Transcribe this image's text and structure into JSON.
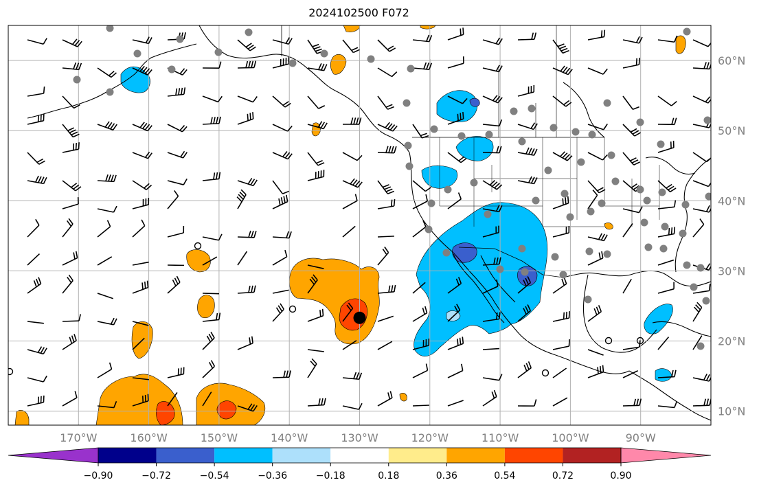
{
  "title": "2024102500 F072",
  "map": {
    "projection": "plate-carree",
    "extent": {
      "lon_min": -180,
      "lon_max": -80,
      "lat_min": 8,
      "lat_max": 65
    },
    "gridlines": true,
    "lon_ticks": [
      {
        "lon": -170,
        "label": "170°W"
      },
      {
        "lon": -160,
        "label": "160°W"
      },
      {
        "lon": -150,
        "label": "150°W"
      },
      {
        "lon": -140,
        "label": "140°W"
      },
      {
        "lon": -130,
        "label": "130°W"
      },
      {
        "lon": -120,
        "label": "120°W"
      },
      {
        "lon": -110,
        "label": "110°W"
      },
      {
        "lon": -100,
        "label": "100°W"
      },
      {
        "lon": -90,
        "label": "90°W"
      }
    ],
    "lat_ticks": [
      {
        "lat": 60,
        "label": "60°N"
      },
      {
        "lat": 50,
        "label": "50°N"
      },
      {
        "lat": 40,
        "label": "40°N"
      },
      {
        "lat": 30,
        "label": "30°N"
      },
      {
        "lat": 20,
        "label": "20°N"
      },
      {
        "lat": 10,
        "label": "10°N"
      }
    ],
    "marker": {
      "lon": -130,
      "lat": 23.3,
      "shape": "filled-circle",
      "color": "#000000"
    },
    "colors": {
      "coast": "#000000",
      "grid": "#b0b0b0",
      "station_dot": "#808080"
    }
  },
  "colorbar": {
    "extend": "both",
    "colors": [
      "#9932cc",
      "#00008b",
      "#3a5fcd",
      "#00bfff",
      "#ade0fb",
      "#ffffff",
      "#ffec8b",
      "#ffa500",
      "#ff4500",
      "#b22222",
      "#ff88aa"
    ],
    "ticks": [
      {
        "value": -0.9,
        "label": "−0.90"
      },
      {
        "value": -0.72,
        "label": "−0.72"
      },
      {
        "value": -0.54,
        "label": "−0.54"
      },
      {
        "value": -0.36,
        "label": "−0.36"
      },
      {
        "value": -0.18,
        "label": "−0.18"
      },
      {
        "value": 0.18,
        "label": "0.18"
      },
      {
        "value": 0.36,
        "label": "0.36"
      },
      {
        "value": 0.54,
        "label": "0.54"
      },
      {
        "value": 0.72,
        "label": "0.72"
      },
      {
        "value": 0.9,
        "label": "0.90"
      }
    ]
  }
}
